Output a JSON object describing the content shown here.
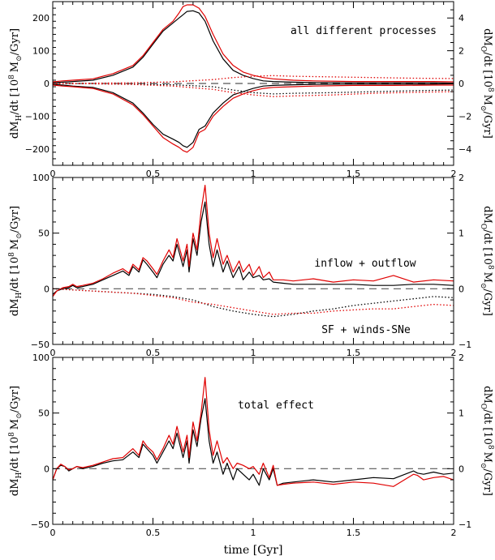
{
  "chart_data": [
    {
      "type": "line",
      "annotation": "all different processes",
      "ylabel_left": "dM_H/dt [10^8 M_sun/Gyr]",
      "ylabel_right": "dM_O/dt [10^8 M_sun/Gyr]",
      "xlim": [
        0,
        2
      ],
      "ylim": [
        -250,
        250
      ],
      "ylim_right": [
        -5,
        5
      ],
      "x_ticks": [
        "0",
        "0.5",
        "1",
        "1.5",
        "2"
      ],
      "y_ticks": [
        "-200",
        "-100",
        "0",
        "100",
        "200"
      ],
      "y_ticks_right": [
        "-4",
        "-2",
        "0",
        "2",
        "4"
      ],
      "zero_line": "dashed",
      "series": [
        {
          "color": "#000000",
          "style": "solid",
          "x": [
            0,
            0.05,
            0.1,
            0.2,
            0.3,
            0.4,
            0.45,
            0.5,
            0.55,
            0.6,
            0.63,
            0.65,
            0.67,
            0.7,
            0.73,
            0.76,
            0.8,
            0.85,
            0.9,
            0.95,
            1.0,
            1.05,
            1.1,
            1.2,
            1.3,
            1.5,
            1.7,
            1.9,
            2.0
          ],
          "values": [
            2,
            4,
            6,
            10,
            25,
            50,
            80,
            120,
            160,
            185,
            200,
            210,
            220,
            222,
            215,
            190,
            130,
            75,
            40,
            25,
            15,
            8,
            6,
            4,
            3,
            2,
            2,
            2,
            1
          ]
        },
        {
          "color": "#e00000",
          "style": "solid",
          "x": [
            0,
            0.05,
            0.1,
            0.2,
            0.3,
            0.4,
            0.45,
            0.5,
            0.55,
            0.6,
            0.63,
            0.65,
            0.67,
            0.7,
            0.73,
            0.76,
            0.8,
            0.85,
            0.9,
            0.95,
            1.0,
            1.05,
            1.1,
            1.2,
            1.3,
            1.5,
            1.7,
            1.9,
            2.0
          ],
          "values": [
            5,
            8,
            10,
            14,
            30,
            55,
            85,
            125,
            165,
            190,
            215,
            235,
            240,
            240,
            230,
            205,
            150,
            90,
            55,
            35,
            25,
            18,
            14,
            10,
            8,
            6,
            6,
            6,
            5
          ]
        },
        {
          "color": "#000000",
          "style": "solid",
          "x": [
            0,
            0.05,
            0.1,
            0.2,
            0.3,
            0.4,
            0.45,
            0.5,
            0.55,
            0.6,
            0.63,
            0.65,
            0.67,
            0.7,
            0.73,
            0.76,
            0.8,
            0.85,
            0.9,
            0.95,
            1.0,
            1.05,
            1.1,
            1.2,
            1.3,
            1.5,
            1.7,
            1.9,
            2.0
          ],
          "values": [
            -3,
            -5,
            -8,
            -12,
            -28,
            -60,
            -90,
            -125,
            -155,
            -170,
            -180,
            -190,
            -195,
            -180,
            -140,
            -130,
            -90,
            -60,
            -35,
            -25,
            -15,
            -8,
            -6,
            -4,
            -3,
            -2,
            -2,
            -2,
            -1
          ]
        },
        {
          "color": "#e00000",
          "style": "solid",
          "x": [
            0,
            0.05,
            0.1,
            0.2,
            0.3,
            0.4,
            0.45,
            0.5,
            0.55,
            0.6,
            0.63,
            0.65,
            0.67,
            0.7,
            0.73,
            0.76,
            0.8,
            0.85,
            0.9,
            0.95,
            1.0,
            1.05,
            1.1,
            1.2,
            1.3,
            1.5,
            1.7,
            1.9,
            2.0
          ],
          "values": [
            -5,
            -8,
            -10,
            -15,
            -32,
            -65,
            -95,
            -130,
            -165,
            -185,
            -195,
            -205,
            -210,
            -195,
            -150,
            -140,
            -100,
            -70,
            -45,
            -32,
            -22,
            -15,
            -12,
            -10,
            -8,
            -6,
            -6,
            -5,
            -5
          ]
        },
        {
          "color": "#000000",
          "style": "dotted",
          "x": [
            0,
            0.2,
            0.4,
            0.6,
            0.8,
            0.9,
            1.0,
            1.1,
            1.2,
            1.4,
            1.6,
            1.8,
            2.0
          ],
          "values": [
            0,
            -1,
            -2,
            -4,
            -10,
            -20,
            -28,
            -32,
            -30,
            -28,
            -25,
            -22,
            -20
          ]
        },
        {
          "color": "#e00000",
          "style": "dotted",
          "x": [
            0,
            0.2,
            0.4,
            0.6,
            0.8,
            0.9,
            1.0,
            1.1,
            1.2,
            1.4,
            1.6,
            1.8,
            2.0
          ],
          "values": [
            0,
            1,
            2,
            5,
            12,
            18,
            22,
            24,
            22,
            20,
            18,
            16,
            15
          ]
        },
        {
          "color": "#e00000",
          "style": "dotted",
          "x": [
            0,
            0.2,
            0.4,
            0.6,
            0.8,
            0.9,
            1.0,
            1.1,
            1.2,
            1.4,
            1.6,
            1.8,
            2.0
          ],
          "values": [
            0,
            -1,
            -3,
            -8,
            -18,
            -28,
            -35,
            -40,
            -38,
            -35,
            -30,
            -27,
            -25
          ]
        }
      ]
    },
    {
      "type": "line",
      "annotation": "inflow + outflow",
      "annotation2": "SF + winds-SNe",
      "ylabel_left": "dM_H/dt [10^8 M_sun/Gyr]",
      "ylabel_right": "dM_O/dt [10^8 M_sun/Gyr]",
      "xlim": [
        0,
        2
      ],
      "ylim": [
        -50,
        100
      ],
      "ylim_right": [
        -1,
        2
      ],
      "x_ticks": [
        "0",
        "0.5",
        "1",
        "1.5",
        "2"
      ],
      "y_ticks": [
        "-50",
        "0",
        "50",
        "100"
      ],
      "y_ticks_right": [
        "-1",
        "0",
        "1",
        "2"
      ],
      "zero_line": "dashed",
      "series": [
        {
          "color": "#000000",
          "style": "solid",
          "x": [
            0,
            0.02,
            0.05,
            0.08,
            0.1,
            0.12,
            0.15,
            0.2,
            0.25,
            0.3,
            0.35,
            0.38,
            0.4,
            0.43,
            0.45,
            0.47,
            0.5,
            0.52,
            0.55,
            0.58,
            0.6,
            0.62,
            0.65,
            0.67,
            0.68,
            0.7,
            0.72,
            0.74,
            0.76,
            0.78,
            0.8,
            0.82,
            0.85,
            0.87,
            0.9,
            0.93,
            0.95,
            0.98,
            1.0,
            1.03,
            1.05,
            1.08,
            1.1,
            1.15,
            1.2,
            1.3,
            1.4,
            1.5,
            1.6,
            1.7,
            1.8,
            1.9,
            2.0
          ],
          "values": [
            -5,
            -2,
            0,
            1,
            3,
            1,
            2,
            4,
            8,
            12,
            16,
            12,
            20,
            15,
            26,
            22,
            15,
            10,
            22,
            30,
            25,
            40,
            20,
            35,
            15,
            45,
            30,
            60,
            78,
            40,
            20,
            35,
            15,
            25,
            10,
            20,
            8,
            15,
            10,
            12,
            8,
            9,
            6,
            5,
            4,
            4,
            4,
            4,
            3,
            3,
            4,
            4,
            3
          ]
        },
        {
          "color": "#e00000",
          "style": "solid",
          "x": [
            0,
            0.02,
            0.05,
            0.08,
            0.1,
            0.12,
            0.15,
            0.2,
            0.25,
            0.3,
            0.35,
            0.38,
            0.4,
            0.43,
            0.45,
            0.47,
            0.5,
            0.52,
            0.55,
            0.58,
            0.6,
            0.62,
            0.65,
            0.67,
            0.68,
            0.7,
            0.72,
            0.74,
            0.76,
            0.78,
            0.8,
            0.82,
            0.85,
            0.87,
            0.9,
            0.93,
            0.95,
            0.98,
            1.0,
            1.03,
            1.05,
            1.08,
            1.1,
            1.15,
            1.2,
            1.3,
            1.4,
            1.5,
            1.6,
            1.7,
            1.8,
            1.9,
            2.0
          ],
          "values": [
            -7,
            -2,
            1,
            2,
            4,
            2,
            3,
            5,
            9,
            14,
            18,
            14,
            22,
            17,
            28,
            25,
            18,
            13,
            25,
            35,
            28,
            45,
            25,
            40,
            20,
            50,
            35,
            70,
            93,
            50,
            28,
            45,
            22,
            30,
            15,
            25,
            15,
            22,
            12,
            20,
            10,
            15,
            8,
            8,
            7,
            9,
            6,
            8,
            7,
            12,
            6,
            8,
            7
          ]
        },
        {
          "color": "#000000",
          "style": "dotted",
          "x": [
            0,
            0.1,
            0.2,
            0.3,
            0.4,
            0.5,
            0.6,
            0.7,
            0.8,
            0.9,
            1.0,
            1.1,
            1.2,
            1.3,
            1.4,
            1.5,
            1.6,
            1.7,
            1.8,
            1.9,
            2.0
          ],
          "values": [
            0,
            -1,
            -2,
            -3,
            -4,
            -5,
            -7,
            -10,
            -16,
            -20,
            -23,
            -25,
            -23,
            -20,
            -18,
            -15,
            -13,
            -11,
            -9,
            -7,
            -8
          ]
        },
        {
          "color": "#e00000",
          "style": "dotted",
          "x": [
            0,
            0.1,
            0.2,
            0.3,
            0.4,
            0.5,
            0.6,
            0.7,
            0.8,
            0.9,
            1.0,
            1.1,
            1.2,
            1.3,
            1.4,
            1.5,
            1.6,
            1.7,
            1.8,
            1.9,
            2.0
          ],
          "values": [
            0,
            -1,
            -2,
            -3,
            -4,
            -6,
            -8,
            -12,
            -14,
            -17,
            -20,
            -23,
            -22,
            -22,
            -20,
            -19,
            -18,
            -18,
            -16,
            -14,
            -15
          ]
        }
      ]
    },
    {
      "type": "line",
      "annotation": "total effect",
      "ylabel_left": "dM_H/dt [10^8 M_sun/Gyr]",
      "ylabel_right": "dM_O/dt [10^8 M_sun/Gyr]",
      "xlabel": "time [Gyr]",
      "xlim": [
        0,
        2
      ],
      "ylim": [
        -50,
        100
      ],
      "ylim_right": [
        -1,
        2
      ],
      "x_ticks": [
        "0",
        "0.5",
        "1",
        "1.5",
        "2"
      ],
      "y_ticks": [
        "-50",
        "0",
        "50",
        "100"
      ],
      "y_ticks_right": [
        "-1",
        "0",
        "1",
        "2"
      ],
      "zero_line": "dashed",
      "series": [
        {
          "color": "#000000",
          "style": "solid",
          "x": [
            0,
            0.02,
            0.04,
            0.06,
            0.08,
            0.1,
            0.12,
            0.15,
            0.2,
            0.25,
            0.3,
            0.35,
            0.4,
            0.43,
            0.45,
            0.47,
            0.5,
            0.52,
            0.55,
            0.58,
            0.6,
            0.62,
            0.65,
            0.67,
            0.68,
            0.7,
            0.72,
            0.74,
            0.76,
            0.78,
            0.8,
            0.82,
            0.85,
            0.87,
            0.9,
            0.92,
            0.95,
            0.98,
            1.0,
            1.03,
            1.05,
            1.08,
            1.1,
            1.12,
            1.15,
            1.2,
            1.3,
            1.4,
            1.5,
            1.6,
            1.7,
            1.8,
            1.82,
            1.85,
            1.9,
            1.95,
            2.0
          ],
          "values": [
            -10,
            0,
            3,
            2,
            -2,
            0,
            2,
            0,
            2,
            5,
            7,
            8,
            15,
            10,
            22,
            18,
            12,
            5,
            15,
            25,
            18,
            32,
            10,
            25,
            5,
            35,
            20,
            45,
            63,
            25,
            5,
            15,
            -5,
            5,
            -10,
            0,
            -5,
            -10,
            -5,
            -15,
            0,
            -10,
            0,
            -15,
            -13,
            -12,
            -10,
            -12,
            -10,
            -8,
            -9,
            -2,
            -4,
            -5,
            -3,
            -5,
            -4
          ]
        },
        {
          "color": "#e00000",
          "style": "solid",
          "x": [
            0,
            0.02,
            0.04,
            0.06,
            0.08,
            0.1,
            0.12,
            0.15,
            0.2,
            0.25,
            0.3,
            0.35,
            0.4,
            0.43,
            0.45,
            0.47,
            0.5,
            0.52,
            0.55,
            0.58,
            0.6,
            0.62,
            0.65,
            0.67,
            0.68,
            0.7,
            0.72,
            0.74,
            0.76,
            0.78,
            0.8,
            0.82,
            0.85,
            0.87,
            0.9,
            0.92,
            0.95,
            0.98,
            1.0,
            1.03,
            1.05,
            1.08,
            1.1,
            1.12,
            1.15,
            1.2,
            1.3,
            1.4,
            1.5,
            1.6,
            1.7,
            1.8,
            1.82,
            1.85,
            1.9,
            1.95,
            2.0
          ],
          "values": [
            -10,
            0,
            4,
            2,
            -1,
            0,
            2,
            1,
            3,
            6,
            9,
            10,
            18,
            12,
            25,
            20,
            15,
            8,
            18,
            30,
            22,
            38,
            15,
            30,
            10,
            42,
            25,
            50,
            82,
            35,
            12,
            25,
            5,
            10,
            0,
            5,
            3,
            0,
            2,
            -5,
            5,
            -8,
            3,
            -15,
            -14,
            -13,
            -12,
            -14,
            -12,
            -13,
            -16,
            -5,
            -6,
            -10,
            -8,
            -7,
            -10
          ]
        }
      ]
    }
  ]
}
